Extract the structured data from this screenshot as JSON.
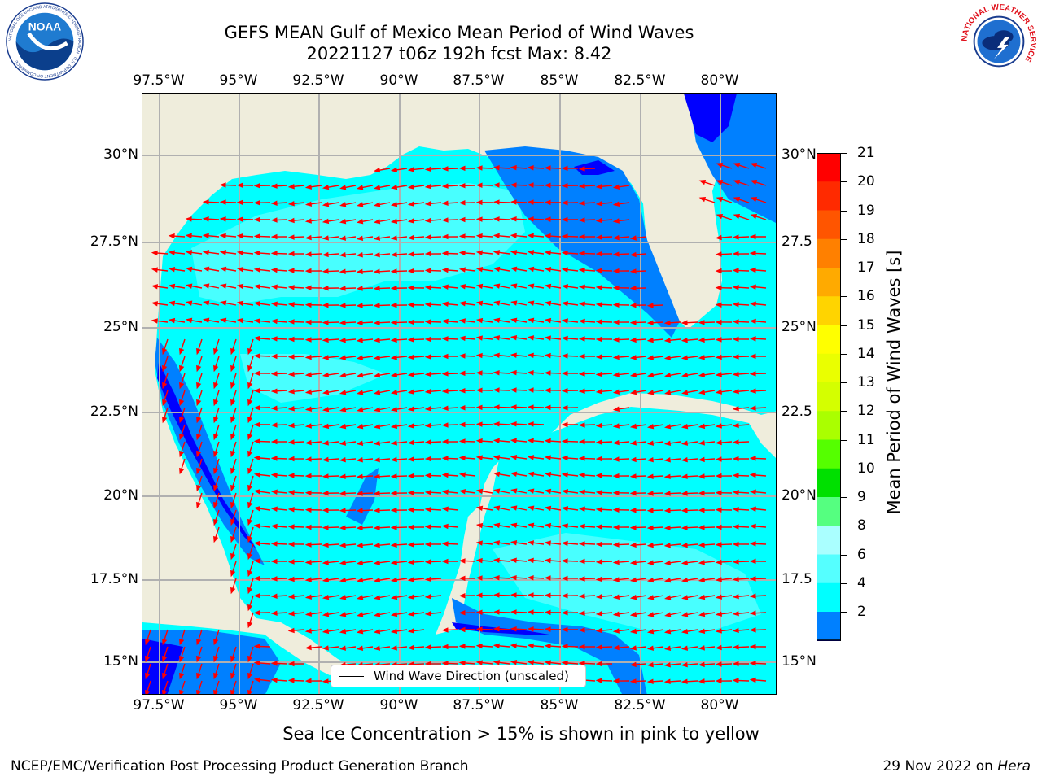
{
  "title": {
    "line1": "GEFS MEAN Gulf of Mexico Mean Period of Wind Waves",
    "line2": "20221127 t06z 192h fcst   Max: 8.42"
  },
  "axes": {
    "lon_labels": [
      "97.5°W",
      "95°W",
      "92.5°W",
      "90°W",
      "87.5°W",
      "85°W",
      "82.5°W",
      "80°W"
    ],
    "lat_labels_left": [
      "30°N",
      "27.5°N",
      "25°N",
      "22.5°N",
      "20°N",
      "17.5°N",
      "15°N"
    ],
    "lat_labels_right": [
      "30°N",
      "27.5",
      "25°N",
      "22.5",
      "20°N",
      "17.5",
      "15°N"
    ]
  },
  "colorbar": {
    "label": "Mean Period of Wind Waves [s]",
    "ticks": [
      "21",
      "20",
      "19",
      "18",
      "17",
      "16",
      "15",
      "14",
      "13",
      "12",
      "11",
      "10",
      "9",
      "8",
      "6",
      "4",
      "2"
    ],
    "colors": [
      "#ff0000",
      "#ff2a00",
      "#ff5500",
      "#ff8000",
      "#ffaa00",
      "#ffd400",
      "#ffff00",
      "#eaff00",
      "#d4ff00",
      "#aaff00",
      "#55ff00",
      "#00e000",
      "#55ff80",
      "#aaffff",
      "#55ffff",
      "#00ffff",
      "#0080ff"
    ],
    "extend_color": "#0000ff"
  },
  "legend": {
    "label": "Wind Wave Direction (unscaled)"
  },
  "map": {
    "land_color": "#efeddc",
    "arrow_color": "#ff0000",
    "wave_colors": {
      "dark": "#0000ff",
      "mid": "#0080ff",
      "light": "#00ffff",
      "pale": "#55ffff"
    }
  },
  "subcaption": "Sea Ice Concentration > 15% is shown in pink to yellow",
  "footer": {
    "left": "NCEP/EMC/Verification Post Processing Product Generation Branch",
    "right_date": "29 Nov 2022 on ",
    "right_host": "Hera"
  },
  "logos": {
    "noaa_text": "NOAA",
    "noaa_ring": "NATIONAL OCEANIC AND ATMOSPHERIC ADMINISTRATION · U.S. DEPARTMENT OF COMMERCE",
    "nws_ring": "NATIONAL WEATHER SERVICE"
  }
}
